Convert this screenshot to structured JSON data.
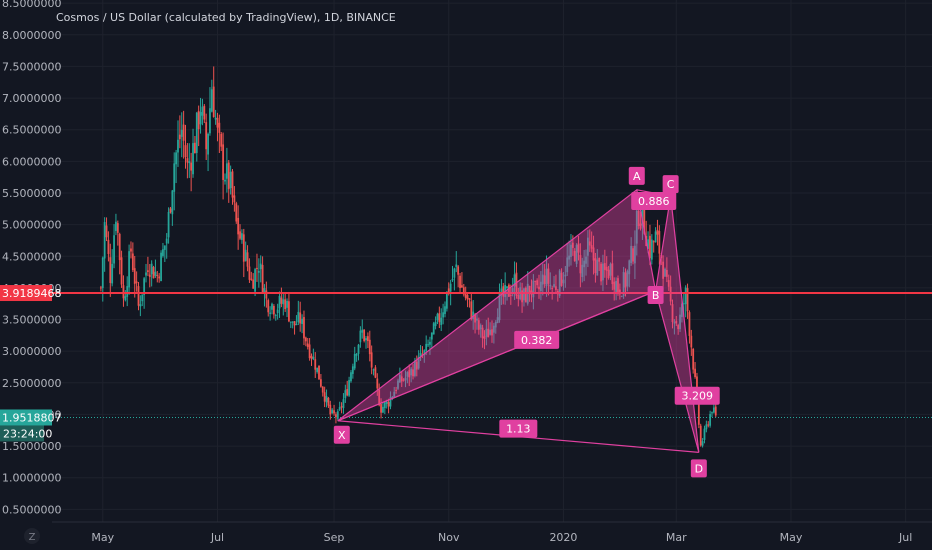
{
  "chart_data": {
    "type": "candlestick",
    "title": "Cosmos / US Dollar (calculated by TradingView), 1D, BINANCE",
    "y_ticks": [
      0.5,
      1.0,
      1.5,
      2.0,
      2.5,
      3.0,
      3.5,
      4.0,
      4.5,
      5.0,
      5.5,
      6.0,
      6.5,
      7.0,
      7.5,
      8.0,
      8.5
    ],
    "y_tick_labels": [
      "0.5000000",
      "1.0000000",
      "1.5000000",
      "2.0000000",
      "2.5000000",
      "3.0000000",
      "3.5000000",
      "4.0000000",
      "4.5000000",
      "5.0000000",
      "5.5000000",
      "6.0000000",
      "6.5000000",
      "7.0000000",
      "7.5000000",
      "8.0000000",
      "8.5000000"
    ],
    "x_ticks": [
      {
        "label": "May",
        "date": "2019-05-01"
      },
      {
        "label": "Jul",
        "date": "2019-07-01"
      },
      {
        "label": "Sep",
        "date": "2019-09-01"
      },
      {
        "label": "Nov",
        "date": "2019-11-01"
      },
      {
        "label": "2020",
        "date": "2020-01-01"
      },
      {
        "label": "Mar",
        "date": "2020-03-01"
      },
      {
        "label": "May",
        "date": "2020-05-01"
      },
      {
        "label": "Jul",
        "date": "2020-07-01"
      }
    ],
    "ylim": [
      0.3,
      8.55
    ],
    "xlim": [
      "2019-04-04",
      "2020-07-15"
    ],
    "colors": {
      "up": "#26a69a",
      "down": "#ef5350",
      "pattern": "#e040a0",
      "background": "#131722",
      "grid": "#1e222d"
    },
    "price_paths": [
      [
        "2019-04-30",
        4.0
      ],
      [
        "2019-05-02",
        5.0
      ],
      [
        "2019-05-05",
        4.2
      ],
      [
        "2019-05-08",
        5.2
      ],
      [
        "2019-05-12",
        3.8
      ],
      [
        "2019-05-16",
        4.6
      ],
      [
        "2019-05-20",
        3.7
      ],
      [
        "2019-05-25",
        4.4
      ],
      [
        "2019-05-30",
        4.2
      ],
      [
        "2019-06-04",
        4.8
      ],
      [
        "2019-06-08",
        6.0
      ],
      [
        "2019-06-12",
        6.5
      ],
      [
        "2019-06-15",
        5.9
      ],
      [
        "2019-06-19",
        6.3
      ],
      [
        "2019-06-22",
        6.9
      ],
      [
        "2019-06-25",
        6.2
      ],
      [
        "2019-06-28",
        7.2
      ],
      [
        "2019-07-01",
        6.4
      ],
      [
        "2019-07-04",
        5.9
      ],
      [
        "2019-07-08",
        5.6
      ],
      [
        "2019-07-11",
        5.0
      ],
      [
        "2019-07-15",
        4.6
      ],
      [
        "2019-07-19",
        4.1
      ],
      [
        "2019-07-23",
        4.4
      ],
      [
        "2019-07-27",
        3.8
      ],
      [
        "2019-08-01",
        3.7
      ],
      [
        "2019-08-06",
        3.8
      ],
      [
        "2019-08-10",
        3.4
      ],
      [
        "2019-08-14",
        3.5
      ],
      [
        "2019-08-18",
        3.1
      ],
      [
        "2019-08-22",
        2.8
      ],
      [
        "2019-08-26",
        2.4
      ],
      [
        "2019-08-30",
        2.0
      ],
      [
        "2019-09-03",
        1.97
      ],
      [
        "2019-09-08",
        2.4
      ],
      [
        "2019-09-12",
        3.0
      ],
      [
        "2019-09-16",
        3.3
      ],
      [
        "2019-09-19",
        3.1
      ],
      [
        "2019-09-22",
        2.6
      ],
      [
        "2019-09-26",
        2.1
      ],
      [
        "2019-09-30",
        2.2
      ],
      [
        "2019-10-05",
        2.5
      ],
      [
        "2019-10-10",
        2.6
      ],
      [
        "2019-10-15",
        2.8
      ],
      [
        "2019-10-20",
        3.0
      ],
      [
        "2019-10-24",
        3.3
      ],
      [
        "2019-10-28",
        3.6
      ],
      [
        "2019-11-01",
        4.0
      ],
      [
        "2019-11-05",
        4.3
      ],
      [
        "2019-11-08",
        4.0
      ],
      [
        "2019-11-12",
        3.7
      ],
      [
        "2019-11-16",
        3.4
      ],
      [
        "2019-11-20",
        3.2
      ],
      [
        "2019-11-24",
        3.4
      ],
      [
        "2019-11-28",
        3.8
      ],
      [
        "2019-12-02",
        3.9
      ],
      [
        "2019-12-06",
        4.1
      ],
      [
        "2019-12-10",
        3.8
      ],
      [
        "2019-12-14",
        4.0
      ],
      [
        "2019-12-18",
        3.9
      ],
      [
        "2019-12-22",
        4.2
      ],
      [
        "2019-12-26",
        4.0
      ],
      [
        "2019-12-30",
        4.1
      ],
      [
        "2020-01-03",
        4.4
      ],
      [
        "2020-01-07",
        4.6
      ],
      [
        "2020-01-11",
        4.3
      ],
      [
        "2020-01-14",
        4.6
      ],
      [
        "2020-01-18",
        4.4
      ],
      [
        "2020-01-22",
        4.2
      ],
      [
        "2020-01-26",
        4.3
      ],
      [
        "2020-01-30",
        4.0
      ],
      [
        "2020-02-03",
        4.1
      ],
      [
        "2020-02-07",
        4.6
      ],
      [
        "2020-02-10",
        5.2
      ],
      [
        "2020-02-13",
        5.0
      ],
      [
        "2020-02-16",
        4.6
      ],
      [
        "2020-02-19",
        4.8
      ],
      [
        "2020-02-22",
        4.5
      ],
      [
        "2020-02-25",
        4.0
      ],
      [
        "2020-02-28",
        3.6
      ],
      [
        "2020-03-02",
        3.4
      ],
      [
        "2020-03-06",
        3.9
      ],
      [
        "2020-03-09",
        3.1
      ],
      [
        "2020-03-12",
        2.2
      ],
      [
        "2020-03-14",
        1.5
      ],
      [
        "2020-03-17",
        1.8
      ],
      [
        "2020-03-20",
        2.1
      ],
      [
        "2020-03-22",
        1.95
      ]
    ],
    "harmonic_pattern": {
      "points": [
        {
          "label": "X",
          "date": "2019-09-03",
          "price": 1.9
        },
        {
          "label": "A",
          "date": "2020-02-09",
          "price": 5.55
        },
        {
          "label": "B",
          "date": "2020-02-19",
          "price": 3.95
        },
        {
          "label": "C",
          "date": "2020-02-27",
          "price": 5.45
        },
        {
          "label": "D",
          "date": "2020-03-13",
          "price": 1.4
        }
      ],
      "ratios": [
        {
          "label": "0.382"
        },
        {
          "label": "0.886"
        },
        {
          "label": "3.209"
        },
        {
          "label": "1.13"
        }
      ]
    },
    "horizontal_lines": [
      {
        "price": 3.9189468,
        "label": "3.9189468",
        "color": "#f23645"
      },
      {
        "price": 1.9518807,
        "label": "1.9518807",
        "color": "#26a69a"
      }
    ],
    "countdown": "23:24:00",
    "logo": "Z"
  }
}
